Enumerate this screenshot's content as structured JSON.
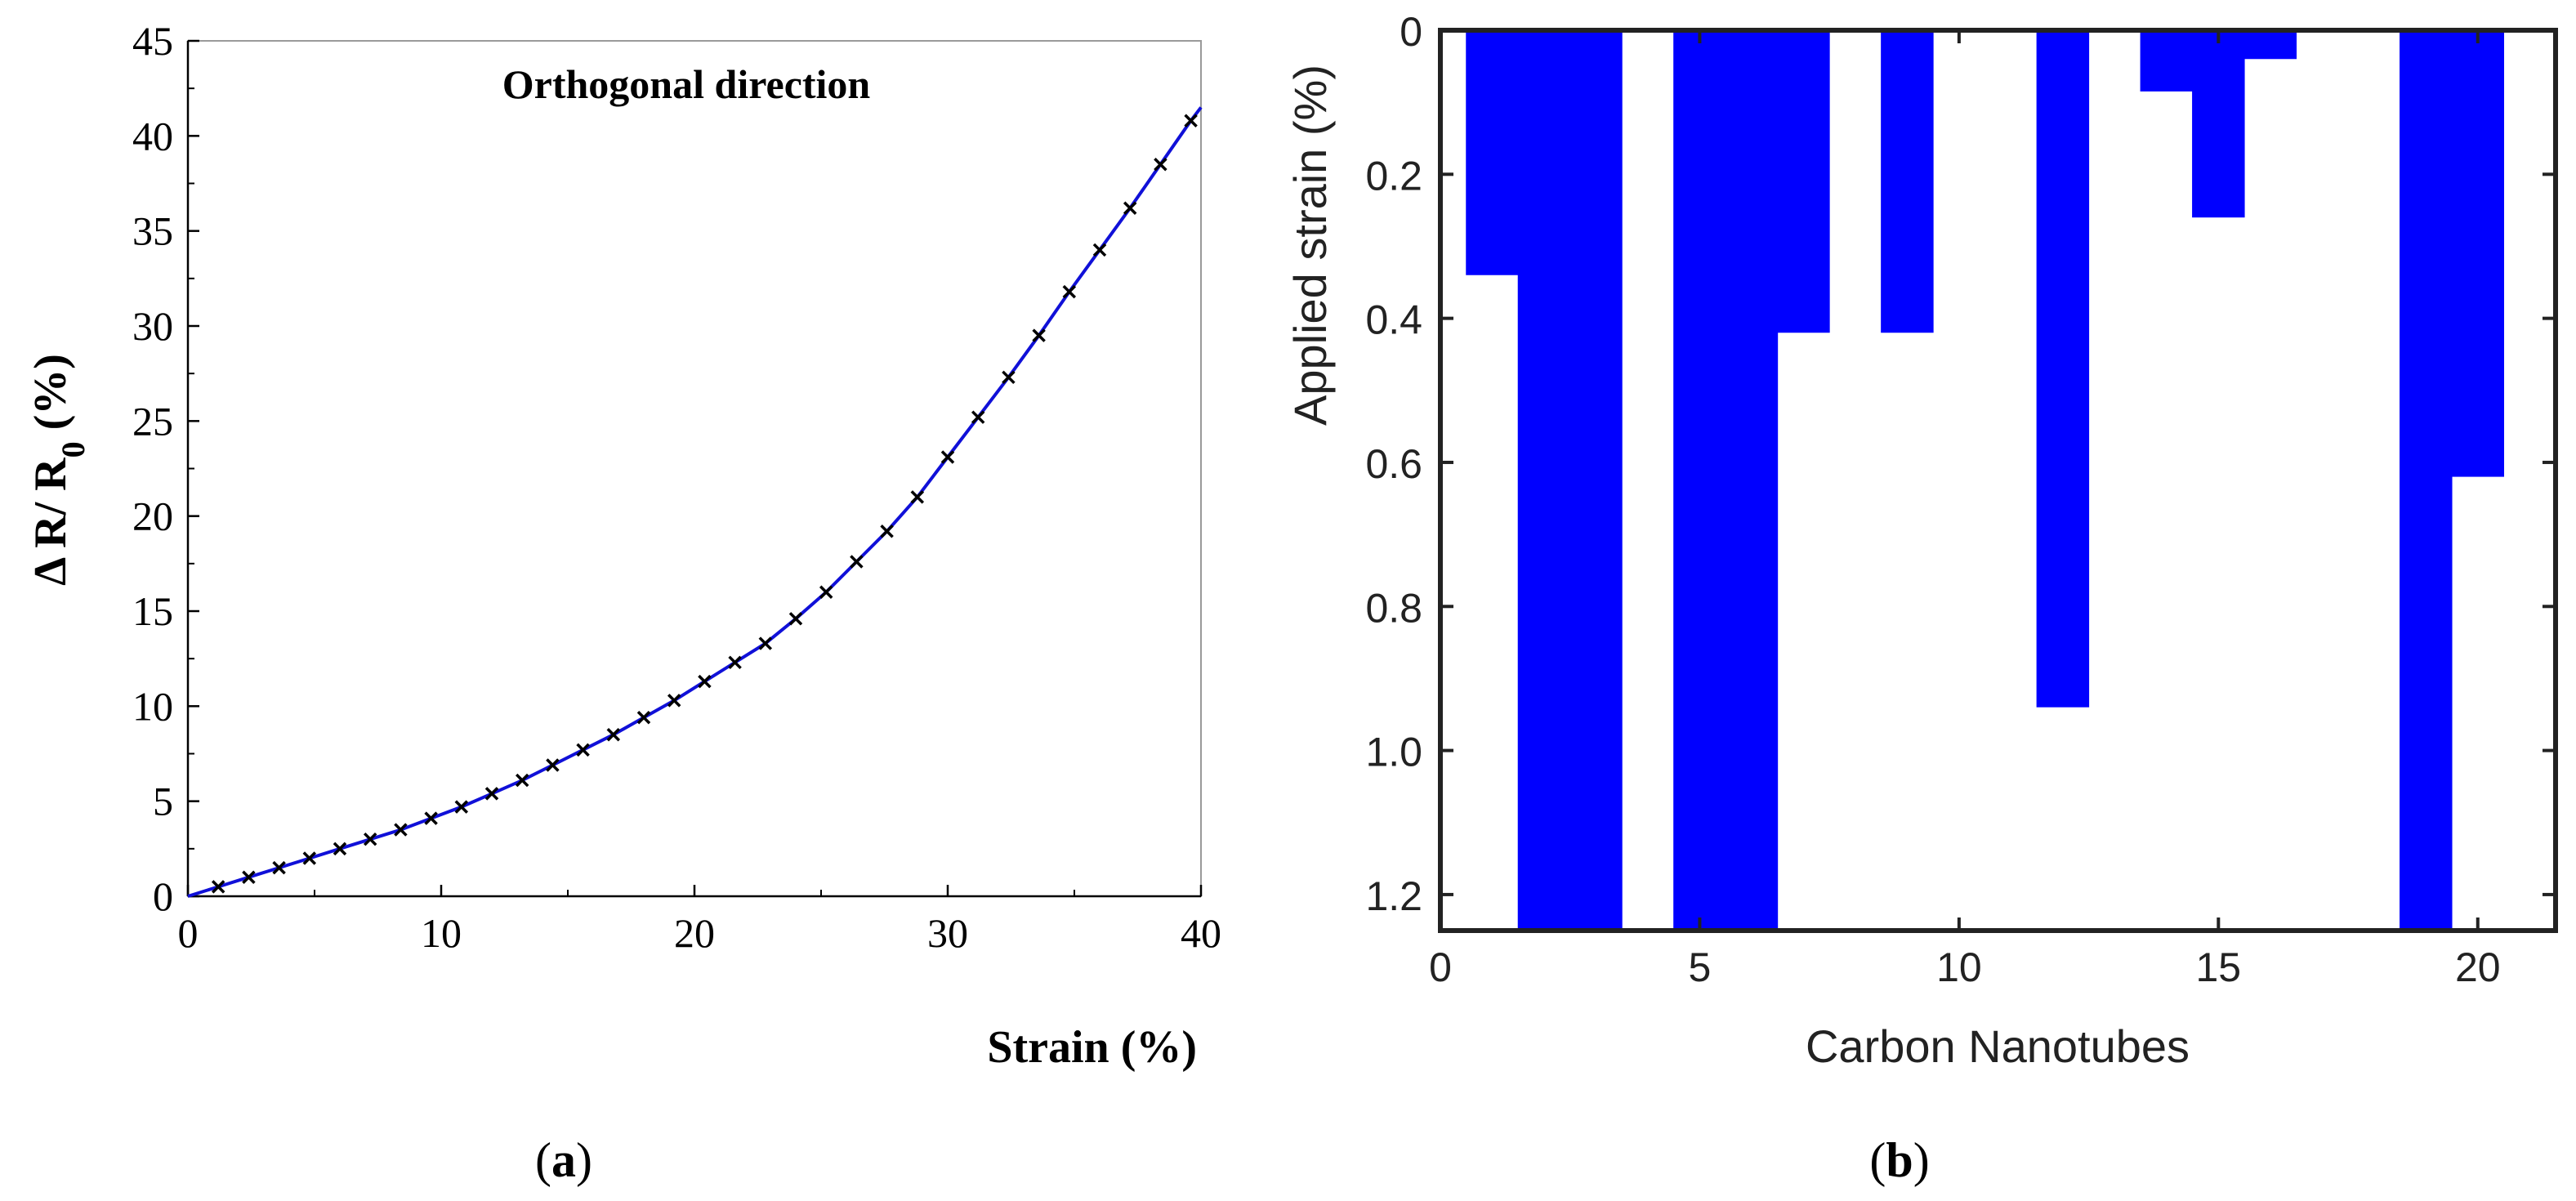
{
  "chart_data": [
    {
      "type": "line",
      "panel_label": "a",
      "title": "Orthogonal direction",
      "xlabel": "Strain (%)",
      "ylabel_parts": [
        "Δ R/ R",
        "0",
        " (%)"
      ],
      "xlim": [
        0,
        40
      ],
      "ylim": [
        0,
        45
      ],
      "x_ticks": [
        0,
        10,
        20,
        30,
        40
      ],
      "y_ticks": [
        0,
        5,
        10,
        15,
        20,
        25,
        30,
        35,
        40,
        45
      ],
      "grid": false,
      "series": [
        {
          "name": "Orthogonal direction",
          "color": "#1010d8",
          "marker": "x",
          "x": [
            0,
            1.2,
            2.4,
            3.6,
            4.8,
            6.0,
            7.2,
            8.4,
            9.6,
            10.8,
            12.0,
            13.2,
            14.4,
            15.6,
            16.8,
            18.0,
            19.2,
            20.4,
            21.6,
            22.8,
            24.0,
            25.2,
            26.4,
            27.6,
            28.8,
            30.0,
            31.2,
            32.4,
            33.6,
            34.8,
            36.0,
            37.2,
            38.4,
            39.6,
            40.0
          ],
          "y": [
            0,
            0.5,
            1.0,
            1.5,
            2.0,
            2.5,
            3.0,
            3.5,
            4.1,
            4.7,
            5.4,
            6.1,
            6.9,
            7.7,
            8.5,
            9.4,
            10.3,
            11.3,
            12.3,
            13.3,
            14.6,
            16.0,
            17.6,
            19.2,
            21.0,
            23.1,
            25.2,
            27.3,
            29.5,
            31.8,
            34.0,
            36.2,
            38.5,
            40.8,
            41.5
          ]
        }
      ]
    },
    {
      "type": "bar",
      "panel_label": "b",
      "title": "",
      "xlabel": "Carbon Nanotubes",
      "ylabel": "Applied strain (%)",
      "xlim": [
        0,
        21.5
      ],
      "ylim": [
        0,
        1.25
      ],
      "y_inverted": true,
      "x_ticks": [
        0,
        5,
        10,
        15,
        20
      ],
      "y_ticks": [
        0,
        0.2,
        0.4,
        0.6,
        0.8,
        1.0,
        1.2
      ],
      "y_tick_labels": [
        "0",
        "0.2",
        "0.4",
        "0.6",
        "0.8",
        "1.0",
        "1.2"
      ],
      "bar_width": 1,
      "color": "#0000ff",
      "categories": [
        1,
        2,
        3,
        4,
        5,
        6,
        7,
        8,
        9,
        10,
        11,
        12,
        13,
        14,
        15,
        16,
        17,
        18,
        19,
        20,
        21
      ],
      "values": [
        0.34,
        1.25,
        1.25,
        0,
        1.25,
        1.25,
        0.42,
        0,
        0.42,
        0,
        0,
        0.94,
        0,
        0.085,
        0.26,
        0.04,
        0,
        0,
        1.25,
        0.62,
        0
      ]
    }
  ],
  "captions": {
    "a": {
      "open": "(",
      "letter": "a",
      "close": ")"
    },
    "b": {
      "open": "(",
      "letter": "b",
      "close": ")"
    }
  }
}
